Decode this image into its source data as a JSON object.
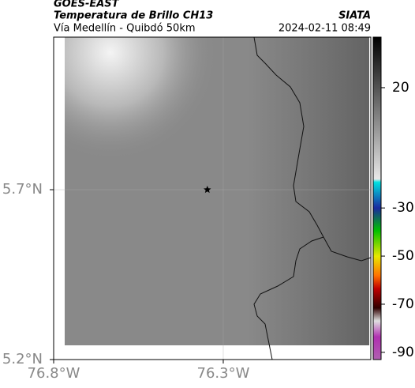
{
  "header": {
    "title": "GOES-EAST",
    "subtitle": "Temperatura de Brillo CH13",
    "location": "Vía Medellín - Quibdó 50km",
    "source": "SIATA",
    "datetime": "2024-02-11 08:49"
  },
  "map": {
    "xlim": [
      -76.8,
      -75.865
    ],
    "ylim": [
      5.2,
      6.149
    ],
    "xticks": [
      {
        "value": -76.8,
        "label": "76.8°W"
      },
      {
        "value": -76.3,
        "label": "76.3°W"
      }
    ],
    "yticks": [
      {
        "value": 5.7,
        "label": "5.7°N"
      },
      {
        "value": 5.2,
        "label": "5.2°N"
      }
    ],
    "marker": {
      "lon": -76.347,
      "lat": 5.7
    }
  },
  "colorbar": {
    "lim": [
      41,
      -93
    ],
    "ticks": [
      20,
      -30,
      -50,
      -70,
      -90
    ]
  }
}
